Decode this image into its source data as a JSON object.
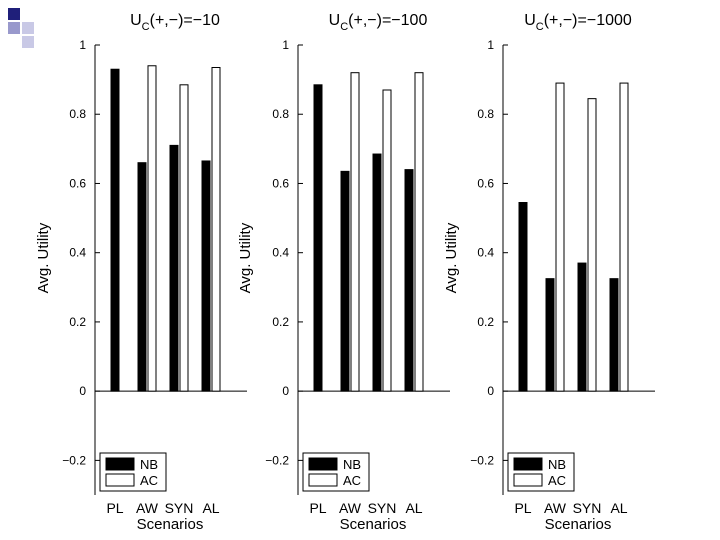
{
  "slide": {
    "deco_colors": [
      "#1f1f7a",
      "#9999cc",
      "#c9c9e6"
    ]
  },
  "chart_data": [
    {
      "type": "bar",
      "title_main": "U",
      "title_sub": "C",
      "title_rest": "(+,−)=−10",
      "categories": [
        "PL",
        "AW",
        "SYN",
        "AL"
      ],
      "series": [
        {
          "name": "NB",
          "values": [
            0.93,
            0.66,
            0.71,
            0.665
          ]
        },
        {
          "name": "AC",
          "values": [
            null,
            0.94,
            0.885,
            0.935
          ]
        }
      ],
      "xlabel": "Scenarios",
      "ylabel": "Avg. Utility",
      "ylim": [
        -0.3,
        1.0
      ],
      "yticks": [
        "1",
        "0.8",
        "0.6",
        "0.4",
        "0.2",
        "0",
        "−0.2"
      ],
      "ytick_values": [
        1,
        0.8,
        0.6,
        0.4,
        0.2,
        0,
        -0.2
      ],
      "legend": [
        "NB",
        "AC"
      ],
      "legend_position": "bottom-left"
    },
    {
      "type": "bar",
      "title_main": "U",
      "title_sub": "C",
      "title_rest": "(+,−)=−100",
      "categories": [
        "PL",
        "AW",
        "SYN",
        "AL"
      ],
      "series": [
        {
          "name": "NB",
          "values": [
            0.885,
            0.635,
            0.685,
            0.64
          ]
        },
        {
          "name": "AC",
          "values": [
            null,
            0.92,
            0.87,
            0.92
          ]
        }
      ],
      "xlabel": "Scenarios",
      "ylabel": "Avg. Utility",
      "ylim": [
        -0.3,
        1.0
      ],
      "yticks": [
        "1",
        "0.8",
        "0.6",
        "0.4",
        "0.2",
        "0",
        "−0.2"
      ],
      "ytick_values": [
        1,
        0.8,
        0.6,
        0.4,
        0.2,
        0,
        -0.2
      ],
      "legend": [
        "NB",
        "AC"
      ],
      "legend_position": "bottom-left"
    },
    {
      "type": "bar",
      "title_main": "U",
      "title_sub": "C",
      "title_rest": "(+,−)=−1000",
      "categories": [
        "PL",
        "AW",
        "SYN",
        "AL"
      ],
      "series": [
        {
          "name": "NB",
          "values": [
            0.545,
            0.325,
            0.37,
            0.325
          ]
        },
        {
          "name": "AC",
          "values": [
            null,
            0.89,
            0.845,
            0.89
          ]
        }
      ],
      "xlabel": "Scenarios",
      "ylabel": "Avg. Utility",
      "ylim": [
        -0.3,
        1.0
      ],
      "yticks": [
        "1",
        "0.8",
        "0.6",
        "0.4",
        "0.2",
        "0",
        "−0.2"
      ],
      "ytick_values": [
        1,
        0.8,
        0.6,
        0.4,
        0.2,
        0,
        -0.2
      ],
      "legend": [
        "NB",
        "AC"
      ],
      "legend_position": "bottom-left"
    }
  ]
}
